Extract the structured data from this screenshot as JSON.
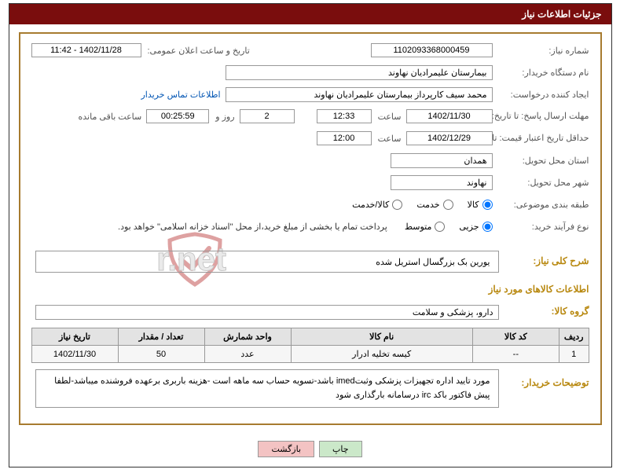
{
  "header": {
    "title": "جزئیات اطلاعات نیاز"
  },
  "labels": {
    "need_no": "شماره نیاز:",
    "announce": "تاریخ و ساعت اعلان عمومی:",
    "buyer_org": "نام دستگاه خریدار:",
    "creator": "ایجاد کننده درخواست:",
    "contact": "اطلاعات تماس خریدار",
    "deadline": "مهلت ارسال پاسخ: تا تاریخ:",
    "time": "ساعت",
    "days_and": "روز و",
    "remaining": "ساعت باقی مانده",
    "validity": "حداقل تاریخ اعتبار قیمت: تا تاریخ:",
    "province": "استان محل تحویل:",
    "city": "شهر محل تحویل:",
    "category": "طبقه بندی موضوعی:",
    "cat_goods": "کالا",
    "cat_service": "خدمت",
    "cat_both": "کالا/خدمت",
    "process": "نوع فرآیند خرید:",
    "proc_small": "جزیی",
    "proc_medium": "متوسط",
    "pay_note": "پرداخت تمام یا بخشی از مبلغ خرید،از محل \"اسناد خزانه اسلامی\" خواهد بود.",
    "main_desc": "شرح کلی نیاز:",
    "goods_info": "اطلاعات کالاهای مورد نیاز",
    "goods_group": "گروه کالا:",
    "buyer_note": "توضیحات خریدار:"
  },
  "fields": {
    "need_no": "1102093368000459",
    "announce": "1402/11/28 - 11:42",
    "buyer_org": "بیمارستان علیمرادیان نهاوند",
    "creator": "محمد سیف کارپرداز بیمارستان علیمرادیان نهاوند",
    "deadline_date": "1402/11/30",
    "deadline_time": "12:33",
    "remaining_days": "2",
    "remaining_clock": "00:25:59",
    "validity_date": "1402/12/29",
    "validity_time": "12:00",
    "province": "همدان",
    "city": "نهاوند",
    "main_desc": "یورین بک بزرگسال استریل شده",
    "goods_group": "دارو، پزشکی و سلامت",
    "buyer_note": "مورد تایید اداره تجهیزات پزشکی وثبتimed باشد-تسویه حساب سه ماهه است -هزینه باربری برعهده فروشنده میباشد-لطفا پیش فاکتور باکد irc درسامانه بارگذاری شود"
  },
  "radios": {
    "category_selected": "goods",
    "process_selected": "small"
  },
  "table": {
    "headers": [
      "ردیف",
      "کد کالا",
      "نام کالا",
      "واحد شمارش",
      "تعداد / مقدار",
      "تاریخ نیاز"
    ],
    "col_widths": [
      "35px",
      "110px",
      "auto",
      "110px",
      "110px",
      "110px"
    ],
    "rows": [
      [
        "1",
        "--",
        "کیسه تخلیه ادرار",
        "عدد",
        "50",
        "1402/11/30"
      ]
    ]
  },
  "buttons": {
    "print": "چاپ",
    "back": "بازگشت"
  },
  "watermark": {
    "text": "AriaTender.net",
    "shield_stroke": "#b22222",
    "text_fill": "#cfcfcf",
    "text_stroke": "#7a7a7a"
  },
  "colors": {
    "header_bg": "#7a0d0d",
    "panel_border": "#a77b2f",
    "section_title": "#b8880f",
    "link": "#0054b3",
    "th_bg": "#e3e3e3",
    "td_bg": "#f6f6f6",
    "btn_print": "#cbe8c9",
    "btn_back": "#f3c3c3"
  }
}
